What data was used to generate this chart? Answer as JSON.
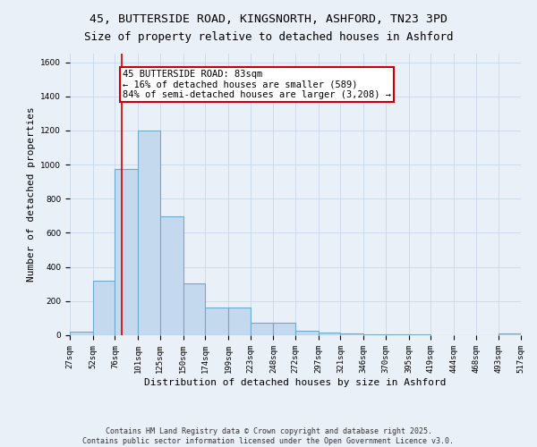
{
  "title_line1": "45, BUTTERSIDE ROAD, KINGSNORTH, ASHFORD, TN23 3PD",
  "title_line2": "Size of property relative to detached houses in Ashford",
  "xlabel": "Distribution of detached houses by size in Ashford",
  "ylabel": "Number of detached properties",
  "bin_edges": [
    27,
    52,
    76,
    101,
    125,
    150,
    174,
    199,
    223,
    248,
    272,
    297,
    321,
    346,
    370,
    395,
    419,
    444,
    468,
    493,
    517
  ],
  "bar_heights": [
    20,
    320,
    975,
    1200,
    695,
    305,
    160,
    160,
    75,
    75,
    25,
    15,
    10,
    5,
    5,
    5,
    0,
    0,
    0,
    10
  ],
  "bar_color": "#c5d9ee",
  "bar_edge_color": "#6eaacc",
  "bar_edge_width": 0.8,
  "red_line_x": 83,
  "red_line_color": "#cc0000",
  "ylim": [
    0,
    1650
  ],
  "yticks": [
    0,
    200,
    400,
    600,
    800,
    1000,
    1200,
    1400,
    1600
  ],
  "annotation_text": "45 BUTTERSIDE ROAD: 83sqm\n← 16% of detached houses are smaller (589)\n84% of semi-detached houses are larger (3,208) →",
  "annotation_box_color": "#ffffff",
  "annotation_box_edge_color": "#cc0000",
  "grid_color": "#c8d8ea",
  "background_color": "#eaf0f8",
  "footer_line1": "Contains HM Land Registry data © Crown copyright and database right 2025.",
  "footer_line2": "Contains public sector information licensed under the Open Government Licence v3.0.",
  "title_fontsize": 9.5,
  "axis_label_fontsize": 8,
  "tick_fontsize": 6.5,
  "annotation_fontsize": 7.5,
  "footer_fontsize": 6
}
